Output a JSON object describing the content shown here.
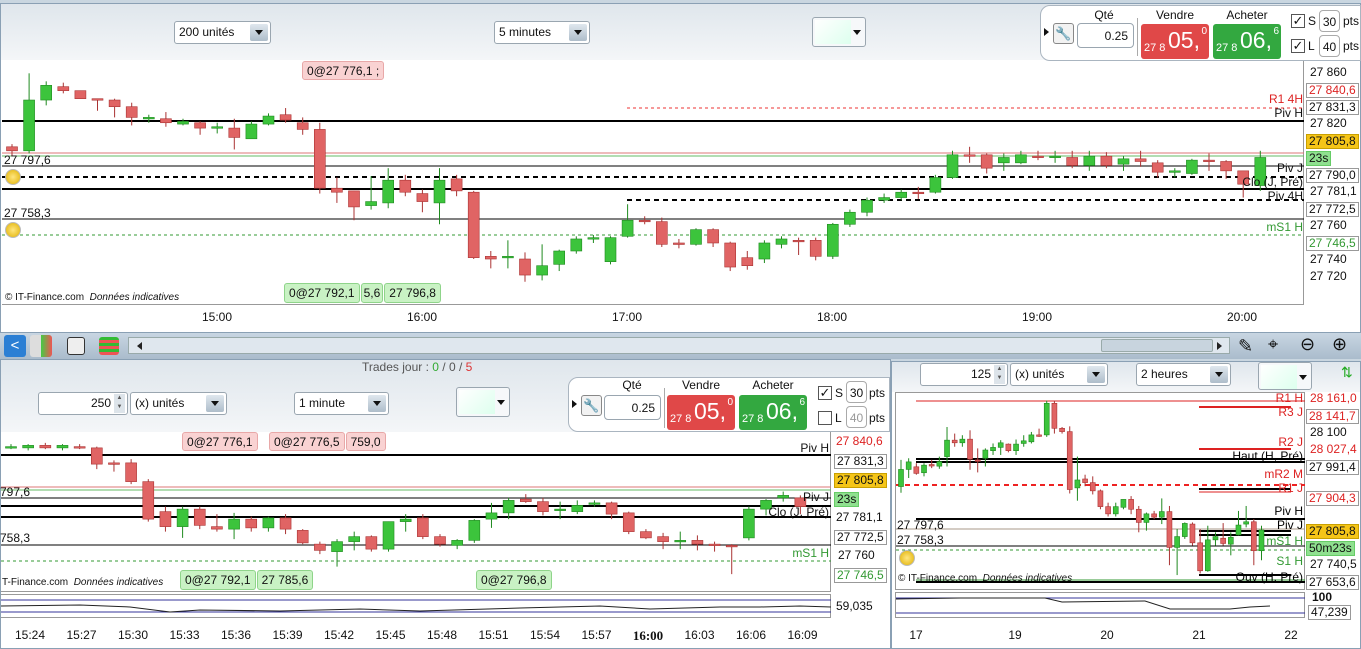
{
  "top": {
    "units_select": "200 unités",
    "interval_select": "5 minutes",
    "order": {
      "qty_label": "Qté",
      "qty": "0.25",
      "sell_label": "Vendre",
      "buy_label": "Acheter",
      "sell_small": "27 8",
      "sell_big": "05,",
      "sell_exp": "0",
      "buy_small": "27 8",
      "buy_big": "06,",
      "buy_exp": "6",
      "s_label": "S",
      "s_checked": true,
      "s_pts": "30",
      "l_label": "L",
      "l_checked": true,
      "l_pts": "40",
      "pts_label": "pts"
    },
    "axis_labels": [
      "27 860",
      "27 840,6",
      "27 831,3",
      "27 820",
      "27 805,8",
      "23s",
      "27 790,0",
      "27 781,1",
      "27 772,5",
      "27 760",
      "27 746,5",
      "27 740",
      "27 720"
    ],
    "line_labels": {
      "r1_4h": "R1 4H",
      "piv_h": "Piv H",
      "piv_j": "Piv J",
      "clo": "Clo (J, Pré)",
      "piv_4h": "Piv 4H",
      "ms1_h": "mS1 H"
    },
    "left_labels": [
      "27 797,6",
      "27 758,3"
    ],
    "orders_top": [
      "0@27 776,1 ;"
    ],
    "orders_bottom": [
      "0@27 792,1",
      "5,6",
      "27 796,8"
    ],
    "copyright": "© IT-Finance.com",
    "copyright_note": "Données indicatives",
    "time_labels": [
      "15:00",
      "16:00",
      "17:00",
      "18:00",
      "19:00",
      "20:00"
    ]
  },
  "bottom_left": {
    "trades_label": "Trades jour : ",
    "trades_win": "0",
    "trades_sep1": " / ",
    "trades_even": "0",
    "trades_sep2": " / ",
    "trades_loss": "5",
    "qty_spin": "250",
    "units_select": "(x) unités",
    "interval_select": "1 minute",
    "order": {
      "qty_label": "Qté",
      "qty": "0.25",
      "sell_label": "Vendre",
      "buy_label": "Acheter",
      "sell_small": "27 8",
      "sell_big": "05,",
      "sell_exp": "0",
      "buy_small": "27 8",
      "buy_big": "06,",
      "buy_exp": "6",
      "s_label": "S",
      "s_checked": true,
      "s_pts": "30",
      "l_label": "L",
      "l_checked": false,
      "l_pts": "40",
      "pts_label": "pts"
    },
    "axis_labels": [
      "27 840,6",
      "27 831,3",
      "27 805,8",
      "23s",
      "27 781,1",
      "27 772,5",
      "27 760",
      "27 746,5"
    ],
    "line_labels": {
      "piv_h": "Piv H",
      "piv_j": "Piv J",
      "clo": "Clo (J, Pré)",
      "ms1_h": "mS1 H"
    },
    "left_labels": [
      "797,6",
      "758,3"
    ],
    "orders_top": [
      "0@27 776,1",
      "0@27 776,5",
      "759,0"
    ],
    "orders_bottom": [
      "0@27 792,1",
      "27 785,6",
      "0@27 796,8"
    ],
    "copyright": "T-Finance.com",
    "copyright_note": "Données indicatives",
    "indicator_value": "59,035",
    "time_labels": [
      "15:24",
      "15:27",
      "15:30",
      "15:33",
      "15:36",
      "15:39",
      "15:42",
      "15:45",
      "15:48",
      "15:51",
      "15:54",
      "15:57",
      "16:00",
      "16:03",
      "16:06",
      "16:09"
    ]
  },
  "right": {
    "qty_spin": "125",
    "units_select": "(x) unités",
    "interval_select": "2 heures",
    "axis_labels": [
      "28 161,0",
      "28 141,7",
      "28 100",
      "28 027,4",
      "27 991,4",
      "27 904,3",
      "27 805,8",
      "50m23s",
      "27 740,5",
      "27 653,6"
    ],
    "line_labels": {
      "r1_h": "R1 H",
      "r3_j": "R3 J",
      "r2_j": "R2 J",
      "haut": "Haut (H, Pré)",
      "mr2_m": "mR2 M",
      "r1_j": "R1 J",
      "piv_h": "Piv H",
      "piv_j": "Piv J",
      "ms1_h": "mS1 H",
      "s1_h": "S1 H",
      "ouv": "Ouv (H, Pré)"
    },
    "left_labels": [
      "27 797,6",
      "27 758,3"
    ],
    "copyright": "© IT-Finance.com",
    "copyright_note": "Données indicatives",
    "indicator_top": "100",
    "indicator_value": "47,239",
    "time_labels": [
      "17",
      "19",
      "20",
      "21",
      "22"
    ]
  },
  "colors": {
    "up": "#3cc43c",
    "down": "#e06464",
    "sell": "#e04848",
    "buy": "#33a840",
    "last_price": "#f5c518"
  },
  "chart_data": [
    {
      "type": "candlestick",
      "interval": "5 minutes",
      "x_start": "14:00",
      "ohlc": [
        [
          27813,
          27815,
          27806,
          27810
        ],
        [
          27810,
          27868,
          27808,
          27848
        ],
        [
          27848,
          27862,
          27844,
          27859
        ],
        [
          27858,
          27861,
          27853,
          27855
        ],
        [
          27855,
          27855,
          27849,
          27849
        ],
        [
          27849,
          27849,
          27840,
          27848
        ],
        [
          27848,
          27849,
          27835,
          27843
        ],
        [
          27843,
          27846,
          27829,
          27835
        ],
        [
          27834,
          27837,
          27831,
          27835
        ],
        [
          27834,
          27839,
          27828,
          27831
        ],
        [
          27830,
          27834,
          27829,
          27832
        ],
        [
          27831,
          27832,
          27822,
          27827
        ],
        [
          27827,
          27831,
          27823,
          27828
        ],
        [
          27827,
          27834,
          27811,
          27820
        ],
        [
          27819,
          27832,
          27819,
          27830
        ],
        [
          27830,
          27838,
          27829,
          27836
        ],
        [
          27837,
          27842,
          27831,
          27833
        ],
        [
          27831,
          27835,
          27822,
          27826
        ],
        [
          27826,
          27831,
          27778,
          27782
        ],
        [
          27782,
          27790,
          27771,
          27779
        ],
        [
          27780,
          27780,
          27758,
          27768
        ],
        [
          27769,
          27791,
          27766,
          27772
        ],
        [
          27771,
          27797,
          27767,
          27788
        ],
        [
          27788,
          27792,
          27776,
          27779
        ],
        [
          27778,
          27781,
          27764,
          27772
        ],
        [
          27771,
          27797,
          27755,
          27788
        ],
        [
          27789,
          27792,
          27776,
          27780
        ],
        [
          27779,
          27780,
          27729,
          27730
        ],
        [
          27731,
          27735,
          27722,
          27729
        ],
        [
          27730,
          27743,
          27722,
          27731
        ],
        [
          27729,
          27734,
          27712,
          27717
        ],
        [
          27717,
          27740,
          27713,
          27724
        ],
        [
          27725,
          27736,
          27720,
          27735
        ],
        [
          27735,
          27746,
          27733,
          27744
        ],
        [
          27744,
          27747,
          27741,
          27745
        ],
        [
          27727,
          27746,
          27725,
          27745
        ],
        [
          27746,
          27770,
          27745,
          27758
        ],
        [
          27758,
          27761,
          27755,
          27757
        ],
        [
          27757,
          27760,
          27738,
          27740
        ],
        [
          27741,
          27744,
          27737,
          27740
        ],
        [
          27740,
          27752,
          27739,
          27751
        ],
        [
          27751,
          27752,
          27738,
          27741
        ],
        [
          27741,
          27742,
          27720,
          27723
        ],
        [
          27730,
          27735,
          27721,
          27724
        ],
        [
          27729,
          27743,
          27726,
          27741
        ],
        [
          27740,
          27746,
          27737,
          27744
        ],
        [
          27743,
          27745,
          27732,
          27742
        ],
        [
          27743,
          27745,
          27728,
          27731
        ],
        [
          27731,
          27756,
          27729,
          27755
        ],
        [
          27755,
          27766,
          27753,
          27764
        ],
        [
          27764,
          27775,
          27761,
          27773
        ],
        [
          27773,
          27778,
          27771,
          27775
        ],
        [
          27775,
          27781,
          27773,
          27779
        ],
        [
          27779,
          27783,
          27774,
          27778
        ],
        [
          27779,
          27792,
          27778,
          27790
        ],
        [
          27790,
          27810,
          27789,
          27807
        ],
        [
          27807,
          27813,
          27801,
          27806
        ],
        [
          27807,
          27808,
          27793,
          27797
        ],
        [
          27801,
          27808,
          27795,
          27805
        ],
        [
          27801,
          27810,
          27800,
          27807
        ],
        [
          27806,
          27810,
          27803,
          27805
        ],
        [
          27805,
          27810,
          27801,
          27806
        ],
        [
          27805,
          27810,
          27797,
          27799
        ],
        [
          27799,
          27810,
          27795,
          27806
        ],
        [
          27806,
          27809,
          27797,
          27799
        ],
        [
          27800,
          27806,
          27795,
          27804
        ],
        [
          27804,
          27810,
          27798,
          27802
        ],
        [
          27801,
          27803,
          27790,
          27794
        ],
        [
          27794,
          27797,
          27790,
          27795
        ],
        [
          27793,
          27804,
          27792,
          27803
        ],
        [
          27803,
          27808,
          27795,
          27802
        ],
        [
          27802,
          27803,
          27789,
          27795
        ],
        [
          27795,
          27795,
          27775,
          27785
        ],
        [
          27784,
          27810,
          27780,
          27805
        ]
      ],
      "levels": {
        "R1 4H": 27840.6,
        "Piv H": 27831.3,
        "Piv J": 27790.0,
        "Clo (J, Pré)": 27781.1,
        "Piv 4H": 27772.5,
        "mS1 H": 27746.5
      }
    },
    {
      "type": "candlestick",
      "interval": "1 minute",
      "x_start": "15:23",
      "ohlc": [
        [
          27838,
          27840,
          27836,
          27838
        ],
        [
          27837,
          27840,
          27835,
          27839
        ],
        [
          27839,
          27841,
          27836,
          27837
        ],
        [
          27837,
          27840,
          27835,
          27839
        ],
        [
          27838,
          27840,
          27836,
          27837
        ],
        [
          27837,
          27838,
          27820,
          27824
        ],
        [
          27825,
          27827,
          27818,
          27824
        ],
        [
          27825,
          27828,
          27808,
          27810
        ],
        [
          27810,
          27812,
          27778,
          27780
        ],
        [
          27786,
          27790,
          27770,
          27774
        ],
        [
          27774,
          27790,
          27765,
          27788
        ],
        [
          27788,
          27790,
          27772,
          27775
        ],
        [
          27774,
          27784,
          27770,
          27772
        ],
        [
          27772,
          27785,
          27764,
          27780
        ],
        [
          27780,
          27782,
          27770,
          27773
        ],
        [
          27773,
          27782,
          27770,
          27781
        ],
        [
          27781,
          27784,
          27768,
          27772
        ],
        [
          27771,
          27772,
          27760,
          27761
        ],
        [
          27760,
          27762,
          27752,
          27755
        ],
        [
          27754,
          27764,
          27742,
          27762
        ],
        [
          27762,
          27770,
          27755,
          27766
        ],
        [
          27766,
          27767,
          27754,
          27756
        ],
        [
          27756,
          27778,
          27754,
          27778
        ],
        [
          27778,
          27784,
          27770,
          27780
        ],
        [
          27781,
          27784,
          27764,
          27766
        ],
        [
          27766,
          27768,
          27758,
          27760
        ],
        [
          27759,
          27764,
          27756,
          27763
        ],
        [
          27763,
          27780,
          27761,
          27779
        ],
        [
          27780,
          27793,
          27773,
          27785
        ],
        [
          27785,
          27797,
          27780,
          27795
        ],
        [
          27796,
          27800,
          27793,
          27794
        ],
        [
          27794,
          27797,
          27783,
          27786
        ],
        [
          27788,
          27794,
          27780,
          27788
        ],
        [
          27786,
          27795,
          27784,
          27791
        ],
        [
          27792,
          27795,
          27790,
          27793
        ],
        [
          27793,
          27794,
          27780,
          27784
        ],
        [
          27785,
          27786,
          27768,
          27770
        ],
        [
          27770,
          27772,
          27764,
          27765
        ],
        [
          27766,
          27769,
          27756,
          27762
        ],
        [
          27762,
          27770,
          27756,
          27763
        ],
        [
          27763,
          27767,
          27755,
          27760
        ],
        [
          27760,
          27762,
          27754,
          27759
        ],
        [
          27759,
          27760,
          27736,
          27758
        ],
        [
          27765,
          27790,
          27763,
          27788
        ],
        [
          27788,
          27796,
          27783,
          27795
        ],
        [
          27797,
          27802,
          27794,
          27799
        ],
        [
          27797,
          27799,
          27784,
          27790
        ]
      ],
      "indicator_last": 59.035
    },
    {
      "type": "candlestick",
      "interval": "2 heures",
      "x_labels": [
        "17",
        "19",
        "20",
        "21",
        "22"
      ],
      "ohlc": [
        [
          27929,
          28010,
          27910,
          27981
        ],
        [
          27981,
          28015,
          27955,
          28004
        ],
        [
          27989,
          28000,
          27965,
          27969
        ],
        [
          27971,
          28000,
          27960,
          27994
        ],
        [
          27996,
          28010,
          27985,
          27995
        ],
        [
          27991,
          28020,
          27983,
          28005
        ],
        [
          28020,
          28110,
          27990,
          28070
        ],
        [
          28070,
          28090,
          28050,
          28062
        ],
        [
          28062,
          28085,
          28050,
          28073
        ],
        [
          28073,
          28100,
          27980,
          28012
        ],
        [
          28010,
          28045,
          27972,
          28009
        ],
        [
          28015,
          28045,
          27990,
          28040
        ],
        [
          28038,
          28060,
          28025,
          28048
        ],
        [
          28048,
          28070,
          28025,
          28062
        ],
        [
          28058,
          28060,
          28033,
          28038
        ],
        [
          28038,
          28072,
          28025,
          28058
        ],
        [
          28060,
          28085,
          28050,
          28068
        ],
        [
          28065,
          28095,
          28060,
          28086
        ],
        [
          28086,
          28105,
          28080,
          28085
        ],
        [
          28086,
          28190,
          28080,
          28182
        ],
        [
          28182,
          28190,
          28090,
          28106
        ],
        [
          28106,
          28110,
          28090,
          28096
        ],
        [
          28096,
          28112,
          27908,
          27920
        ],
        [
          27925,
          28020,
          27886,
          27949
        ],
        [
          27952,
          27965,
          27930,
          27941
        ],
        [
          27941,
          27960,
          27905,
          27916
        ],
        [
          27916,
          27920,
          27860,
          27868
        ],
        [
          27868,
          27880,
          27838,
          27846
        ],
        [
          27846,
          27880,
          27838,
          27868
        ],
        [
          27866,
          27890,
          27860,
          27890
        ],
        [
          27890,
          27900,
          27845,
          27860
        ],
        [
          27860,
          27870,
          27790,
          27820
        ],
        [
          27820,
          27850,
          27795,
          27846
        ],
        [
          27846,
          27855,
          27830,
          27836
        ],
        [
          27836,
          27893,
          27815,
          27853
        ],
        [
          27853,
          27870,
          27690,
          27744
        ],
        [
          27744,
          27800,
          27660,
          27777
        ],
        [
          27777,
          27820,
          27770,
          27817
        ],
        [
          27815,
          27820,
          27750,
          27758
        ],
        [
          27758,
          27800,
          27665,
          27673
        ],
        [
          27673,
          27810,
          27670,
          27767
        ],
        [
          27767,
          27790,
          27750,
          27777
        ],
        [
          27772,
          27818,
          27750,
          27756
        ],
        [
          27754,
          27790,
          27720,
          27775
        ],
        [
          27782,
          27855,
          27780,
          27812
        ],
        [
          27815,
          27870,
          27805,
          27822
        ],
        [
          27822,
          27830,
          27690,
          27734
        ],
        [
          27734,
          27810,
          27705,
          27797
        ]
      ],
      "indicator_last": 47.239
    }
  ]
}
